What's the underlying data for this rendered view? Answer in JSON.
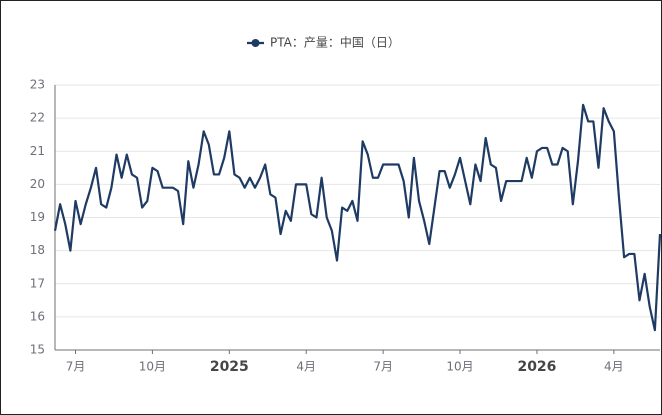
{
  "chart_data": {
    "type": "line",
    "categories": [
      null,
      null,
      null,
      null,
      "7月",
      null,
      null,
      null,
      null,
      null,
      null,
      null,
      null,
      null,
      null,
      null,
      null,
      null,
      null,
      "10月",
      null,
      null,
      null,
      null,
      null,
      null,
      null,
      null,
      null,
      null,
      null,
      null,
      null,
      null,
      "2025",
      null,
      null,
      null,
      null,
      null,
      null,
      null,
      null,
      null,
      null,
      null,
      null,
      null,
      null,
      "4月",
      null,
      null,
      null,
      null,
      null,
      null,
      null,
      null,
      null,
      null,
      null,
      null,
      null,
      null,
      "7月",
      null,
      null,
      null,
      null,
      null,
      null,
      null,
      null,
      null,
      null,
      null,
      null,
      null,
      null,
      "10月",
      null,
      null,
      null,
      null,
      null,
      null,
      null,
      null,
      null,
      null,
      null,
      null,
      null,
      null,
      "2026",
      null,
      null,
      null,
      null,
      null,
      null,
      null,
      null,
      null,
      null,
      null,
      null,
      null,
      null,
      "4月",
      null,
      null,
      null,
      null,
      null,
      null,
      null,
      null,
      null
    ],
    "series": [
      {
        "name": "PTA：产量：中国（日）",
        "color": "#1f3b63",
        "values": [
          18.6,
          19.4,
          18.8,
          18.0,
          19.5,
          18.8,
          19.4,
          19.9,
          20.5,
          19.4,
          19.3,
          19.9,
          20.9,
          20.2,
          20.9,
          20.3,
          20.2,
          19.3,
          19.5,
          20.5,
          20.4,
          19.9,
          19.9,
          19.9,
          19.8,
          18.8,
          20.7,
          19.9,
          20.6,
          21.6,
          21.2,
          20.3,
          20.3,
          20.8,
          21.6,
          20.3,
          20.2,
          19.9,
          20.2,
          19.9,
          20.2,
          20.6,
          19.7,
          19.6,
          18.5,
          19.2,
          18.9,
          20.0,
          20.0,
          20.0,
          19.1,
          19.0,
          20.2,
          19.0,
          18.6,
          17.7,
          19.3,
          19.2,
          19.5,
          18.9,
          21.3,
          20.9,
          20.2,
          20.2,
          20.6,
          20.6,
          20.6,
          20.6,
          20.1,
          19.0,
          20.8,
          19.5,
          18.9,
          18.2,
          19.3,
          20.4,
          20.4,
          19.9,
          20.3,
          20.8,
          20.1,
          19.4,
          20.6,
          20.1,
          21.4,
          20.6,
          20.5,
          19.5,
          20.1,
          20.1,
          20.1,
          20.1,
          20.8,
          20.2,
          21.0,
          21.1,
          21.1,
          20.6,
          20.6,
          21.1,
          21.0,
          19.4,
          20.7,
          22.4,
          21.9,
          21.9,
          20.5,
          22.3,
          21.9,
          21.6,
          19.6,
          17.8,
          17.9,
          17.9,
          16.5,
          17.3,
          16.3,
          15.6,
          18.5
        ]
      }
    ],
    "ylim": [
      15,
      23
    ],
    "yticks": [
      15,
      16,
      17,
      18,
      19,
      20,
      21,
      22,
      23
    ],
    "grid": true,
    "legend": "top"
  }
}
